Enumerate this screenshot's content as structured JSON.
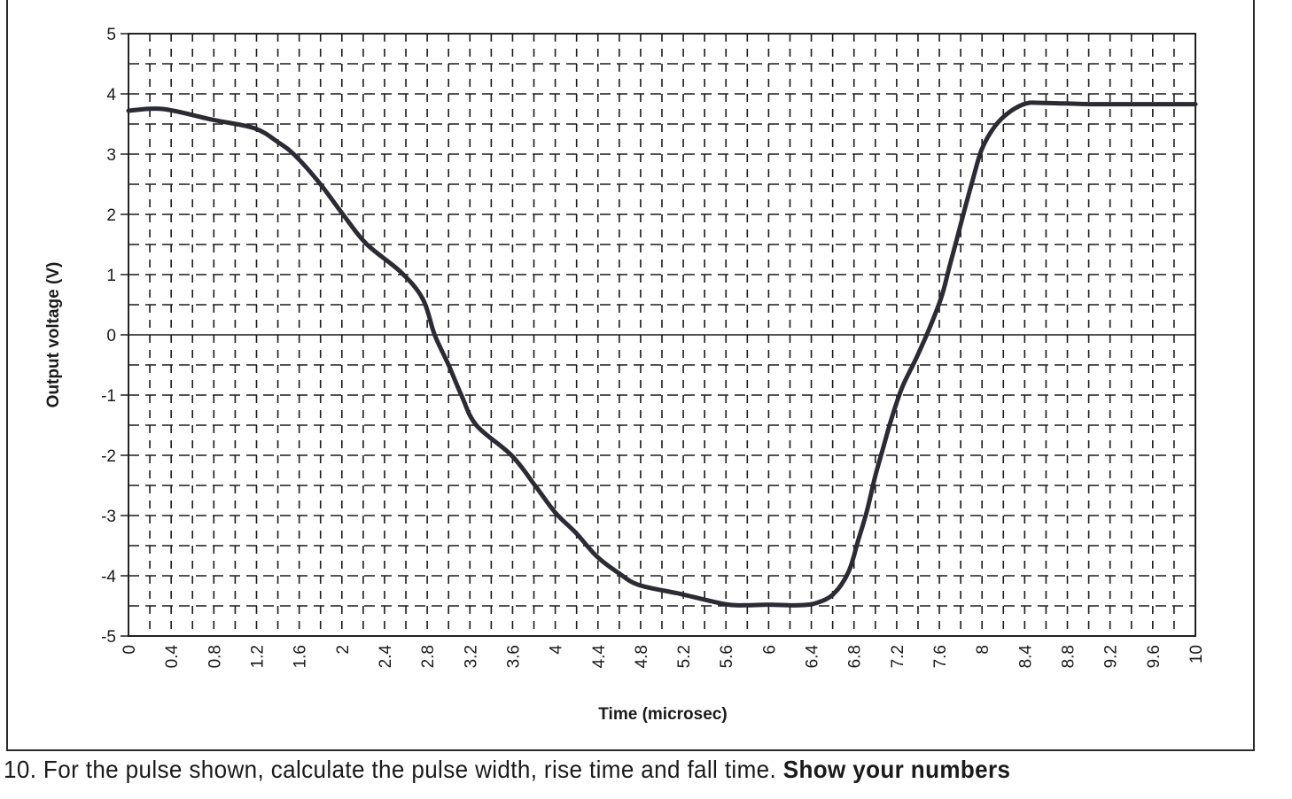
{
  "chart_data": {
    "type": "line",
    "title": "",
    "xlabel": "Time (microsec)",
    "ylabel": "Output voltage (V)",
    "xlim": [
      0,
      10
    ],
    "ylim": [
      -5,
      5
    ],
    "grid": true,
    "grid_style": "dashed, x every 0.2, y every 0.5",
    "legend": null,
    "x_ticks": [
      "0",
      "0.4",
      "0.8",
      "1.2",
      "1.6",
      "2",
      "2.4",
      "2.8",
      "3.2",
      "3.6",
      "4",
      "4.4",
      "4.8",
      "5.2",
      "5.6",
      "6",
      "6.4",
      "6.8",
      "7.2",
      "7.6",
      "8",
      "8.4",
      "8.8",
      "9.2",
      "9.6",
      "10"
    ],
    "y_ticks": [
      "5",
      "4",
      "3",
      "2",
      "1",
      "0",
      "-1",
      "-2",
      "-3",
      "-4",
      "-5"
    ],
    "series": [
      {
        "name": "Output voltage",
        "x": [
          0,
          0.32,
          0.79,
          1.18,
          1.4,
          1.56,
          1.79,
          2.01,
          2.23,
          2.56,
          2.76,
          2.87,
          3.0,
          3.12,
          3.26,
          3.59,
          3.81,
          4.0,
          4.2,
          4.39,
          4.59,
          4.78,
          5.17,
          5.59,
          5.78,
          6.0,
          6.28,
          6.45,
          6.61,
          6.75,
          6.84,
          6.92,
          7.0,
          7.07,
          7.15,
          7.25,
          7.38,
          7.51,
          7.62,
          7.69,
          7.77,
          7.84,
          7.92,
          8.0,
          8.12,
          8.25,
          8.41,
          8.58,
          9.0,
          9.5,
          10.0
        ],
        "y": [
          3.72,
          3.75,
          3.57,
          3.43,
          3.2,
          2.98,
          2.52,
          2.0,
          1.51,
          1.03,
          0.59,
          0.0,
          -0.5,
          -1.0,
          -1.5,
          -2.0,
          -2.5,
          -2.95,
          -3.3,
          -3.68,
          -3.95,
          -4.15,
          -4.3,
          -4.47,
          -4.49,
          -4.48,
          -4.49,
          -4.45,
          -4.3,
          -3.93,
          -3.41,
          -2.93,
          -2.34,
          -1.9,
          -1.4,
          -0.88,
          -0.4,
          0.12,
          0.63,
          1.1,
          1.63,
          2.1,
          2.62,
          3.09,
          3.46,
          3.69,
          3.84,
          3.85,
          3.83,
          3.83,
          3.83
        ]
      }
    ]
  },
  "question": {
    "number": "10.",
    "text": "For the pulse shown, calculate the pulse width, rise time and fall time.",
    "emphasis": "Show your numbers"
  }
}
